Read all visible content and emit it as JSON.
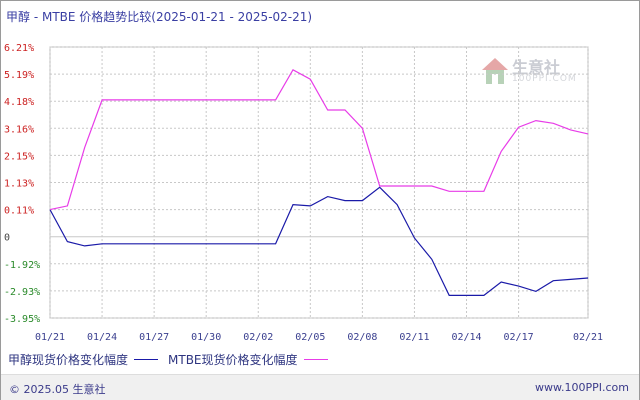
{
  "title": "甲醇 - MTBE 价格趋势比较(2025-01-21 - 2025-02-21)",
  "watermark": {
    "text": "生意社",
    "sub": "100PPI.COM"
  },
  "footer": {
    "left": "© 2025.05 生意社",
    "right": "www.100PPI.com"
  },
  "colors": {
    "methanol": "#1a1aa8",
    "mtbe": "#e83ce8",
    "positive_tick": "#cc2222",
    "negative_tick": "#2a8a2a",
    "zero_tick": "#444444"
  },
  "chart_data": {
    "type": "line",
    "title": "甲醇 - MTBE 价格趋势比较(2025-01-21 - 2025-02-21)",
    "xlabel": "",
    "ylabel": "",
    "grid": true,
    "legend_position": "bottom-left",
    "x_start": "01/21",
    "x_end": "02/21",
    "x_tick_labels": [
      "01/21",
      "01/24",
      "01/27",
      "01/30",
      "02/02",
      "02/05",
      "02/08",
      "02/11",
      "02/14",
      "02/17",
      "02/21"
    ],
    "y_tick_labels": [
      "6.21%",
      "5.19%",
      "4.18%",
      "3.16%",
      "2.15%",
      "1.13%",
      "0.11%",
      "0",
      "-1.92%",
      "-2.93%",
      "-3.95%"
    ],
    "ylim": [
      -3.95,
      6.21
    ],
    "series": [
      {
        "name": "甲醇现货价格变化幅度",
        "x": [
          "01/21",
          "01/22",
          "01/23",
          "01/24",
          "01/25",
          "01/26",
          "01/27",
          "01/28",
          "01/29",
          "01/30",
          "01/31",
          "02/01",
          "02/02",
          "02/03",
          "02/04",
          "02/05",
          "02/06",
          "02/07",
          "02/08",
          "02/09",
          "02/10",
          "02/11",
          "02/12",
          "02/13",
          "02/14",
          "02/15",
          "02/16",
          "02/17",
          "02/18",
          "02/19",
          "02/20",
          "02/21"
        ],
        "values": [
          0.11,
          -0.35,
          -0.65,
          -0.5,
          -0.5,
          -0.5,
          -0.5,
          -0.5,
          -0.5,
          -0.5,
          -0.5,
          -0.5,
          -0.5,
          -0.5,
          0.3,
          0.25,
          0.6,
          0.45,
          0.45,
          0.95,
          0.3,
          -0.1,
          -1.6,
          -3.1,
          -3.1,
          -3.1,
          -2.6,
          -2.75,
          -2.95,
          -2.55,
          -2.5,
          -2.45
        ]
      },
      {
        "name": "MTBE现货价格变化幅度",
        "x": [
          "01/21",
          "01/22",
          "01/23",
          "01/24",
          "01/25",
          "01/26",
          "01/27",
          "01/28",
          "01/29",
          "01/30",
          "01/31",
          "02/01",
          "02/02",
          "02/03",
          "02/04",
          "02/05",
          "02/06",
          "02/07",
          "02/08",
          "02/09",
          "02/10",
          "02/11",
          "02/12",
          "02/13",
          "02/14",
          "02/15",
          "02/16",
          "02/17",
          "02/18",
          "02/19",
          "02/20",
          "02/21"
        ],
        "values": [
          0.11,
          0.25,
          2.45,
          4.23,
          4.23,
          4.23,
          4.23,
          4.23,
          4.23,
          4.23,
          4.23,
          4.23,
          4.23,
          4.23,
          5.35,
          5.0,
          3.85,
          3.85,
          3.16,
          1.0,
          1.0,
          1.0,
          1.0,
          0.8,
          0.8,
          0.8,
          2.3,
          3.2,
          3.45,
          3.35,
          3.1,
          2.95
        ]
      }
    ]
  }
}
